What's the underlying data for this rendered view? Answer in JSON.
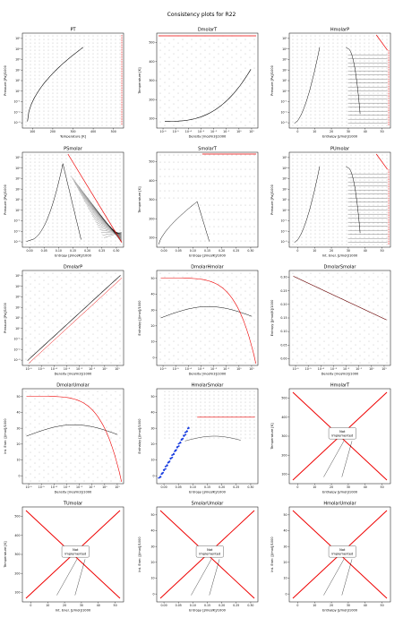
{
  "page": {
    "suptitle": "Consistency plots for R22"
  },
  "chart_data": [
    {
      "id": "PT",
      "type": "scatter",
      "title": "PT",
      "xlabel": "Temperature [K]",
      "ylabel": "Pressure [Pa]/1000",
      "xticks": [
        "100",
        "200",
        "300",
        "400",
        "500"
      ],
      "yticks": [
        "10⁻³",
        "10⁻²",
        "10⁻¹",
        "10⁰",
        "10¹",
        "10²",
        "10³",
        "10⁴",
        "10⁵"
      ],
      "xlim": [
        100,
        550
      ],
      "ylog": true,
      "ylim": [
        0.001,
        100000
      ],
      "style": "pt",
      "not_implemented": false
    },
    {
      "id": "DmolarT",
      "type": "scatter",
      "title": "DmolarT",
      "xlabel": "Density [mol/m3]/1000",
      "ylabel": "Temperature [K]",
      "xticks": [
        "10⁻⁶",
        "10⁻⁵",
        "10⁻⁴",
        "10⁻³",
        "10⁻²",
        "10⁻¹",
        "10⁰",
        "10¹"
      ],
      "yticks": [
        "100",
        "200",
        "300",
        "400",
        "500"
      ],
      "ylim": [
        100,
        550
      ],
      "style": "dens_t",
      "not_implemented": false
    },
    {
      "id": "HmolarP",
      "type": "scatter",
      "title": "HmolarP",
      "xlabel": "Enthalpy [J/mol]/1000",
      "ylabel": "Pressure [Pa]/1000",
      "xticks": [
        "0",
        "10",
        "20",
        "30",
        "40",
        "50"
      ],
      "yticks": [
        "10⁻³",
        "10⁻²",
        "10⁻¹",
        "10⁰",
        "10¹",
        "10²",
        "10³",
        "10⁴",
        "10⁵"
      ],
      "xlim": [
        0,
        55
      ],
      "ylog": true,
      "style": "dome_p",
      "not_implemented": false
    },
    {
      "id": "PSmolar",
      "type": "scatter",
      "title": "PSmolar",
      "xlabel": "Entropy [J/mol/K]/1000",
      "ylabel": "Pressure [Pa]/1000",
      "xticks": [
        "0.00",
        "0.05",
        "0.10",
        "0.15",
        "0.20",
        "0.25",
        "0.30"
      ],
      "yticks": [
        "10⁻³",
        "10⁻²",
        "10⁻¹",
        "10⁰",
        "10¹",
        "10²",
        "10³",
        "10⁴",
        "10⁵"
      ],
      "xlim": [
        0,
        0.32
      ],
      "ylog": true,
      "style": "dome_s",
      "not_implemented": false
    },
    {
      "id": "SmolarT",
      "type": "scatter",
      "title": "SmolarT",
      "xlabel": "Entropy [J/mol/K]/1000",
      "ylabel": "Temperature [K]",
      "xticks": [
        "0.00",
        "0.05",
        "0.10",
        "0.15",
        "0.20",
        "0.25",
        "0.30"
      ],
      "yticks": [
        "100",
        "200",
        "300",
        "400",
        "500"
      ],
      "xlim": [
        0,
        0.32
      ],
      "ylim": [
        100,
        550
      ],
      "style": "ts",
      "not_implemented": false
    },
    {
      "id": "PUmolar",
      "type": "scatter",
      "title": "PUmolar",
      "xlabel": "Int. Ener. [J/mol]/1000",
      "ylabel": "Pressure [Pa]/1000",
      "xticks": [
        "0",
        "10",
        "20",
        "30",
        "40",
        "50"
      ],
      "yticks": [
        "10⁻³",
        "10⁻²",
        "10⁻¹",
        "10⁰",
        "10¹",
        "10²",
        "10³",
        "10⁴",
        "10⁵"
      ],
      "xlim": [
        0,
        52
      ],
      "ylog": true,
      "style": "dome_p",
      "not_implemented": false
    },
    {
      "id": "DmolarP",
      "type": "scatter",
      "title": "DmolarP",
      "xlabel": "Density [mol/m3]/1000",
      "ylabel": "Pressure [Pa]/1000",
      "xticks": [
        "10⁻⁶",
        "10⁻⁵",
        "10⁻⁴",
        "10⁻³",
        "10⁻²",
        "10⁻¹",
        "10⁰",
        "10¹"
      ],
      "yticks": [
        "10⁻³",
        "10⁻²",
        "10⁻¹",
        "10⁰",
        "10¹",
        "10²",
        "10³",
        "10⁴",
        "10⁵"
      ],
      "ylog": true,
      "style": "dens_p",
      "not_implemented": false
    },
    {
      "id": "DmolarHmolar",
      "type": "scatter",
      "title": "DmolarHmolar",
      "xlabel": "Density [mol/m3]/1000",
      "ylabel": "Enthalpy [J/mol]/1000",
      "xticks": [
        "10⁻⁶",
        "10⁻⁵",
        "10⁻⁴",
        "10⁻³",
        "10⁻²",
        "10⁻¹",
        "10⁰",
        "10¹"
      ],
      "yticks": [
        "0",
        "10",
        "20",
        "30",
        "40",
        "50"
      ],
      "ylim": [
        0,
        55
      ],
      "style": "dens_h",
      "not_implemented": false
    },
    {
      "id": "DmolarSmolar",
      "type": "scatter",
      "title": "DmolarSmolar",
      "xlabel": "Density [mol/m3]/1000",
      "ylabel": "Entropy [J/mol/K]/1000",
      "xticks": [
        "10⁻⁶",
        "10⁻⁵",
        "10⁻⁴",
        "10⁻³",
        "10⁻²",
        "10⁻¹",
        "10⁰",
        "10¹"
      ],
      "yticks": [
        "0.00",
        "0.05",
        "0.10",
        "0.15",
        "0.20",
        "0.25",
        "0.30"
      ],
      "ylim": [
        0,
        0.32
      ],
      "style": "dens_s",
      "not_implemented": false
    },
    {
      "id": "DmolarUmolar",
      "type": "scatter",
      "title": "DmolarUmolar",
      "xlabel": "Density [mol/m3]/1000",
      "ylabel": "Int. Ener. [J/mol]/1000",
      "xticks": [
        "10⁻⁶",
        "10⁻⁵",
        "10⁻⁴",
        "10⁻³",
        "10⁻²",
        "10⁻¹",
        "10⁰",
        "10¹"
      ],
      "yticks": [
        "0",
        "10",
        "20",
        "30",
        "40",
        "50"
      ],
      "ylim": [
        0,
        52
      ],
      "style": "dens_h",
      "not_implemented": false
    },
    {
      "id": "HmolarSmolar",
      "type": "scatter",
      "title": "HmolarSmolar",
      "xlabel": "Entropy [J/mol/K]/1000",
      "ylabel": "Enthalpy [J/mol]/1000",
      "xticks": [
        "0.00",
        "0.05",
        "0.10",
        "0.15",
        "0.20",
        "0.25",
        "0.30"
      ],
      "yticks": [
        "0",
        "10",
        "20",
        "30",
        "40",
        "50"
      ],
      "xlim": [
        0,
        0.32
      ],
      "ylim": [
        0,
        55
      ],
      "style": "hs",
      "not_implemented": false
    },
    {
      "id": "HmolarT",
      "type": "scatter",
      "title": "HmolarT",
      "xlabel": "Enthalpy [J/mol]/1000",
      "ylabel": "Temperature [K]",
      "xticks": [
        "0",
        "10",
        "20",
        "30",
        "40",
        "50"
      ],
      "yticks": [
        "100",
        "200",
        "300",
        "400",
        "500"
      ],
      "xlim": [
        -2,
        57
      ],
      "ylim": [
        60,
        570
      ],
      "style": "x",
      "not_implemented": true,
      "note": "Not\nImplemented"
    },
    {
      "id": "TUmolar",
      "type": "scatter",
      "title": "TUmolar",
      "xlabel": "Int. Ener. [J/mol]/1000",
      "ylabel": "Temperature [K]",
      "xticks": [
        "0",
        "10",
        "20",
        "30",
        "40",
        "50"
      ],
      "yticks": [
        "100",
        "200",
        "300",
        "400",
        "500"
      ],
      "xlim": [
        -2,
        54
      ],
      "ylim": [
        60,
        570
      ],
      "style": "x",
      "not_implemented": true,
      "note": "Not\nImplemented"
    },
    {
      "id": "SmolarUmolar",
      "type": "scatter",
      "title": "SmolarUmolar",
      "xlabel": "Entropy [J/mol/K]/1000",
      "ylabel": "Int. Ener. [J/mol]/1000",
      "xticks": [
        "0.00",
        "0.05",
        "0.10",
        "0.15",
        "0.20",
        "0.25",
        "0.30"
      ],
      "yticks": [
        "0",
        "10",
        "20",
        "30",
        "40",
        "50"
      ],
      "xlim": [
        -0.01,
        0.32
      ],
      "ylim": [
        -2,
        54
      ],
      "style": "x",
      "not_implemented": true,
      "note": "Not\nImplemented"
    },
    {
      "id": "HmolarUmolar",
      "type": "scatter",
      "title": "HmolarUmolar",
      "xlabel": "Enthalpy [J/mol]/1000",
      "ylabel": "Int. Ener. [J/mol]/1000",
      "xticks": [
        "0",
        "10",
        "20",
        "30",
        "40",
        "50"
      ],
      "yticks": [
        "0",
        "10",
        "20",
        "30",
        "40",
        "50"
      ],
      "xlim": [
        -2,
        57
      ],
      "ylim": [
        -2,
        54
      ],
      "style": "x",
      "not_implemented": true,
      "note": "Not\nImplemented"
    }
  ]
}
